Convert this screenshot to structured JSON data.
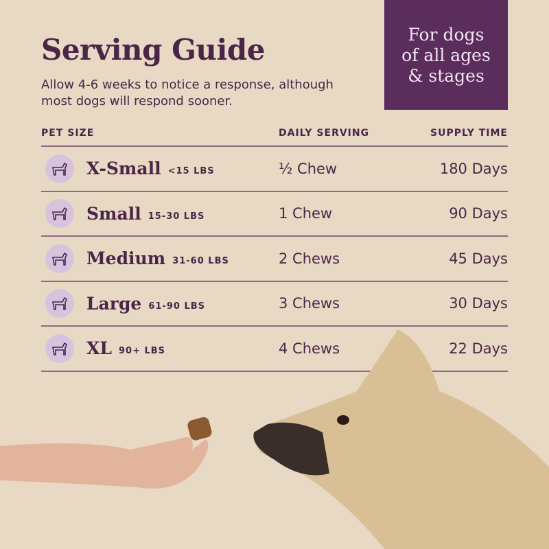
{
  "header": {
    "title": "Serving Guide",
    "subtitle": "Allow 4-6 weeks to notice a response, although most dogs will respond sooner.",
    "badge_lines": [
      "For dogs",
      "of all ages",
      "& stages"
    ]
  },
  "table": {
    "columns": [
      "PET SIZE",
      "DAILY SERVING",
      "SUPPLY TIME"
    ],
    "rows": [
      {
        "size": "X-Small",
        "weight": "<15 LBS",
        "serving": "½ Chew",
        "supply": "180 Days",
        "icon": "chihuahua-icon"
      },
      {
        "size": "Small",
        "weight": "15-30 LBS",
        "serving": "1 Chew",
        "supply": "90 Days",
        "icon": "dachshund-icon"
      },
      {
        "size": "Medium",
        "weight": "31-60 LBS",
        "serving": "2 Chews",
        "supply": "45 Days",
        "icon": "bulldog-icon"
      },
      {
        "size": "Large",
        "weight": "61-90 LBS",
        "serving": "3 Chews",
        "supply": "30 Days",
        "icon": "retriever-icon"
      },
      {
        "size": "XL",
        "weight": "90+ LBS",
        "serving": "4 Chews",
        "supply": "22 Days",
        "icon": "doberman-icon"
      }
    ]
  },
  "colors": {
    "background": "#e8d9c5",
    "primary": "#4a2548",
    "badge": "#5a2d5c",
    "icon_circle": "#d8c3df"
  }
}
